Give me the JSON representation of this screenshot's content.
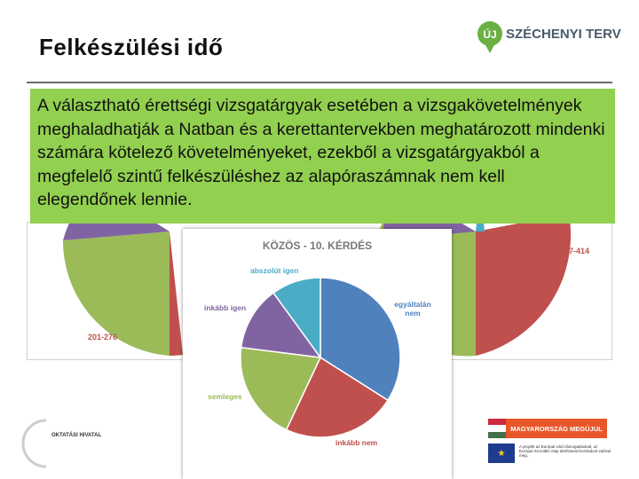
{
  "slide": {
    "title": "Felkészülési idő",
    "body_text": "A választható érettségi vizsgatárgyak esetében a vizsgakövetelmények meghaladhatják a Natban és a kerettantervekben meghatározott mindenki számára kötelező követelményeket, ezekből a vizsgatárgyakból a megfelelő szintű felkészüléshez az alapóraszámnak nem kell elegendőnek lennie."
  },
  "logo": {
    "text": "SZÉCHENYI TERV",
    "badge": "ÚJ",
    "color": "#6ab043"
  },
  "background_charts": {
    "left_label": "201-276",
    "right_label": "277-414"
  },
  "chart_data": {
    "type": "pie",
    "title": "KÖZÖS - 10. KÉRDÉS",
    "categories": [
      "egyáltalán nem",
      "inkább nem",
      "semleges",
      "inkább igen",
      "abszolút igen"
    ],
    "values": [
      34,
      23,
      20,
      13,
      10
    ],
    "colors": [
      "#4f81bd",
      "#c0504d",
      "#9bbb59",
      "#8064a2",
      "#4bacc6"
    ]
  },
  "footer": {
    "office_text": "OKTATÁSI HIVATAL",
    "banner_text": "MAGYARORSZÁG MEGÚJUL",
    "eu_note": "A projekt az Európai Unió támogatásával, az Európai Szociális Alap társfinanszírozásával valósul meg."
  }
}
